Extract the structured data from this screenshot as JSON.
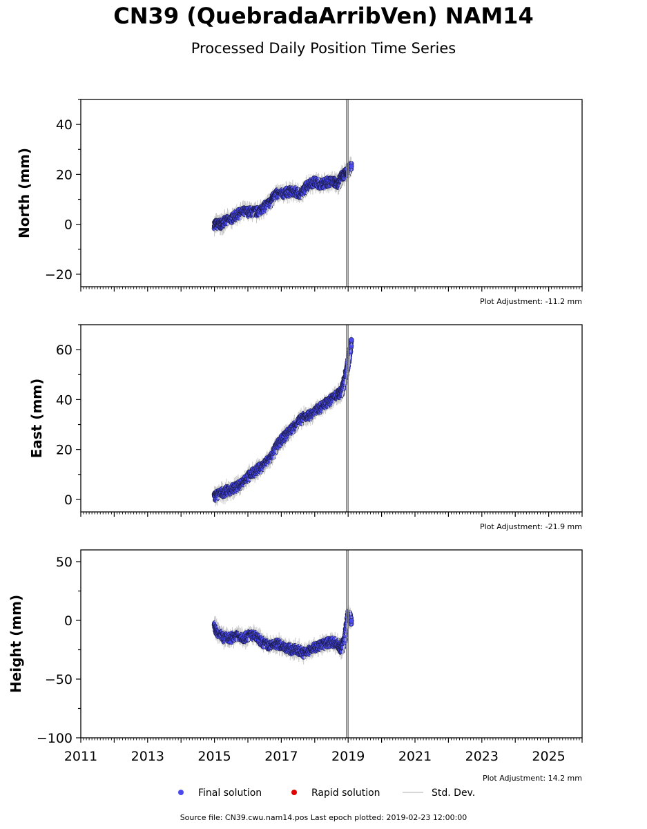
{
  "title": "CN39 (QuebradaArribVen) NAM14",
  "subtitle": "Processed Daily Position Time Series",
  "source_note": "Source file: CN39.cwu.nam14.pos  Last epoch plotted: 2019-02-23 12:00:00",
  "colors": {
    "final": "#4a4aee",
    "final_edge": "#1a1a44",
    "rapid": "#e00000",
    "stddev": "#c8c8c8",
    "offset_line": "#808080"
  },
  "legend": [
    {
      "label": "Final solution",
      "marker": "dot",
      "color": "#4a4aee"
    },
    {
      "label": "Rapid solution",
      "marker": "dot",
      "color": "#e00000"
    },
    {
      "label": "Std. Dev.",
      "marker": "line",
      "color": "#c8c8c8"
    }
  ],
  "chart_data": [
    {
      "type": "scatter",
      "ylabel": "North (mm)",
      "xlim": [
        2011,
        2026
      ],
      "ylim": [
        -25,
        50
      ],
      "yticks": [
        -20,
        0,
        20,
        40
      ],
      "yticklabels": [
        "−20",
        "0",
        "20",
        "40"
      ],
      "adjustment": "Plot Adjustment: -11.2 mm",
      "offset_lines": [
        2018.95,
        2019.0
      ],
      "series": [
        {
          "x": [
            2015.0,
            2015.1,
            2015.2,
            2015.3,
            2015.5,
            2015.7,
            2015.9,
            2016.1,
            2016.3,
            2016.5,
            2016.7,
            2016.8,
            2017.0,
            2017.2,
            2017.4,
            2017.6,
            2017.8,
            2018.0,
            2018.2,
            2018.4,
            2018.6,
            2018.7,
            2018.8,
            2018.9,
            2019.0,
            2019.1
          ],
          "y": [
            0,
            0,
            0,
            1,
            2,
            4,
            5,
            5,
            5,
            7,
            9,
            12,
            12,
            13,
            13,
            12,
            16,
            17,
            16,
            17,
            17,
            16,
            19,
            20,
            21,
            24
          ]
        }
      ]
    },
    {
      "type": "scatter",
      "ylabel": "East (mm)",
      "xlim": [
        2011,
        2026
      ],
      "ylim": [
        -5,
        70
      ],
      "yticks": [
        0,
        20,
        40,
        60
      ],
      "yticklabels": [
        "0",
        "20",
        "40",
        "60"
      ],
      "adjustment": "Plot Adjustment: -21.9 mm",
      "offset_lines": [
        2018.95,
        2019.0
      ],
      "series": [
        {
          "x": [
            2015.0,
            2015.1,
            2015.3,
            2015.5,
            2015.7,
            2015.9,
            2016.1,
            2016.3,
            2016.5,
            2016.7,
            2016.9,
            2017.1,
            2017.3,
            2017.5,
            2017.7,
            2017.9,
            2018.1,
            2018.3,
            2018.5,
            2018.7,
            2018.8,
            2018.9,
            2019.0,
            2019.1
          ],
          "y": [
            1,
            2,
            3,
            4,
            5,
            8,
            10,
            12,
            14,
            17,
            22,
            25,
            28,
            31,
            33,
            34,
            36,
            38,
            40,
            42,
            43,
            48,
            55,
            63
          ]
        }
      ]
    },
    {
      "type": "scatter",
      "ylabel": "Height (mm)",
      "xlim": [
        2011,
        2026
      ],
      "ylim": [
        -100,
        60
      ],
      "yticks": [
        -100,
        -50,
        0,
        50
      ],
      "yticklabels": [
        "−100",
        "−50",
        "0",
        "50"
      ],
      "xticks": [
        2011,
        2013,
        2015,
        2017,
        2019,
        2021,
        2023,
        2025
      ],
      "xticklabels": [
        "2011",
        "2013",
        "2015",
        "2017",
        "2019",
        "2021",
        "2023",
        "2025"
      ],
      "adjustment": "Plot Adjustment: 14.2 mm",
      "offset_lines": [
        2018.95,
        2019.0
      ],
      "series": [
        {
          "x": [
            2015.0,
            2015.1,
            2015.3,
            2015.5,
            2015.7,
            2015.9,
            2016.1,
            2016.3,
            2016.5,
            2016.7,
            2016.9,
            2017.1,
            2017.3,
            2017.5,
            2017.7,
            2017.9,
            2018.1,
            2018.3,
            2018.5,
            2018.7,
            2018.8,
            2018.9,
            2019.0,
            2019.1
          ],
          "y": [
            -5,
            -10,
            -15,
            -15,
            -12,
            -15,
            -12,
            -15,
            -20,
            -22,
            -20,
            -22,
            -25,
            -25,
            -28,
            -25,
            -22,
            -20,
            -18,
            -20,
            -25,
            -15,
            5,
            0
          ]
        }
      ]
    }
  ]
}
